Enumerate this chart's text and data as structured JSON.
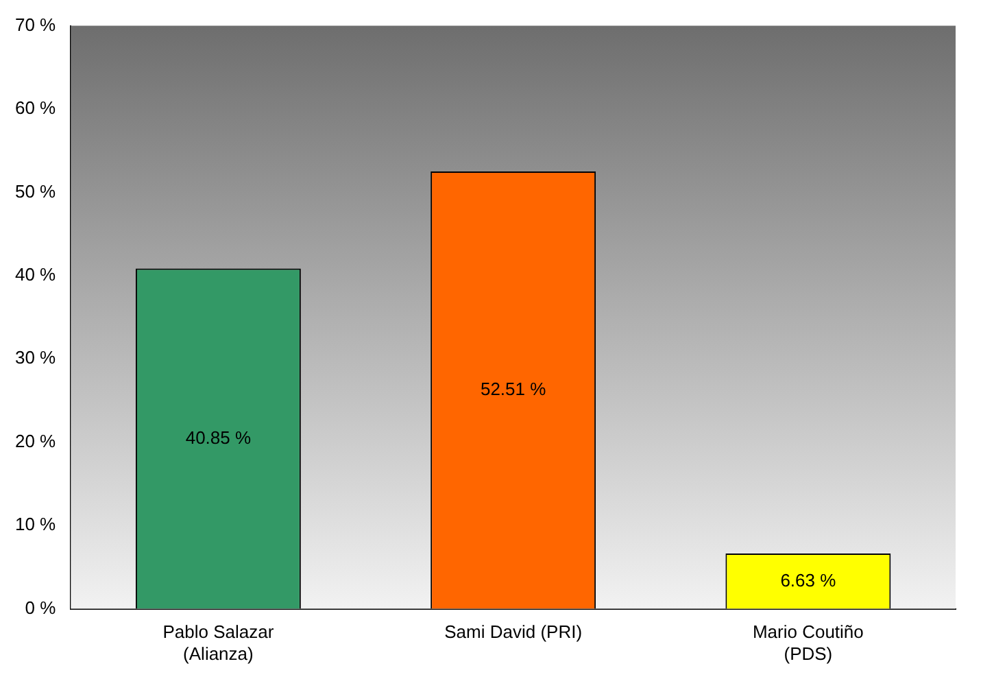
{
  "chart_data": {
    "type": "bar",
    "categories": [
      "Pablo Salazar\n(Alianza)",
      "Sami David (PRI)",
      "Mario Coutiño\n(PDS)"
    ],
    "values": [
      40.85,
      52.51,
      6.63
    ],
    "colors": [
      "#339966",
      "#ff6600",
      "#ffff00"
    ],
    "value_labels": [
      "40.85 %",
      "52.51 %",
      "6.63 %"
    ],
    "ylim": [
      0,
      70
    ],
    "yticks": [
      {
        "value": 0,
        "label": "0 %"
      },
      {
        "value": 10,
        "label": "10 %"
      },
      {
        "value": 20,
        "label": "20 %"
      },
      {
        "value": 30,
        "label": "30 %"
      },
      {
        "value": 40,
        "label": "40 %"
      },
      {
        "value": 50,
        "label": "50 %"
      },
      {
        "value": 60,
        "label": "60 %"
      },
      {
        "value": 70,
        "label": "70 %"
      }
    ],
    "grid": false,
    "legend": false
  }
}
